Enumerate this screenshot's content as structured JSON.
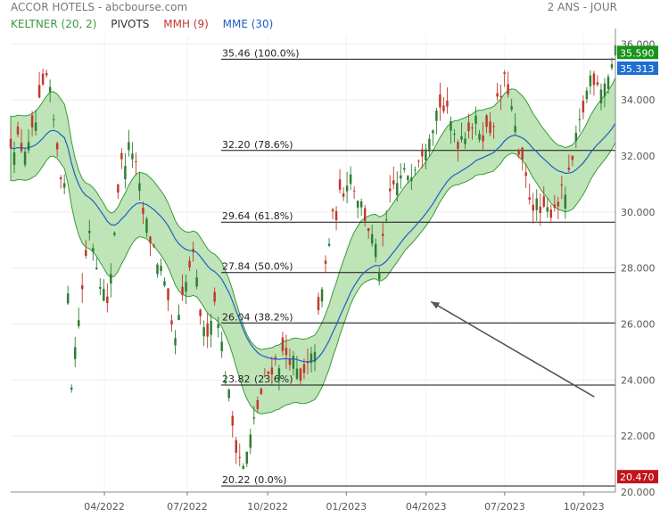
{
  "header": {
    "title": "ACCOR HOTELS - abcbourse.com",
    "period": "2 ANS - JOUR"
  },
  "legend": {
    "keltner": "KELTNER (20, 2)",
    "pivots": "PIVOTS",
    "mmh": "MMH (9)",
    "mme": "MME (30)"
  },
  "colors": {
    "keltner_band": "#a8dba0",
    "keltner_line": "#3a9a3a",
    "candle_down": "#c0392b",
    "candle_up": "#2e7d32",
    "mme": "#1f5fbf",
    "mmh": "#c0392b",
    "current_price_badge": "#169416",
    "mme_badge": "#1f6fd0",
    "low_badge": "#c0141c"
  },
  "chart_data": {
    "type": "candlestick",
    "title": "ACCOR HOTELS - abcbourse.com",
    "period": "2 ANS - JOUR",
    "y_ticks": [
      "36.000",
      "34.000",
      "32.000",
      "30.000",
      "28.000",
      "26.000",
      "24.000",
      "22.000",
      "20.000"
    ],
    "x_ticks": [
      "04/2022",
      "07/2022",
      "10/2022",
      "01/2023",
      "04/2023",
      "07/2023",
      "10/2023"
    ],
    "ylim": [
      20,
      36.3
    ],
    "price_path": [
      [
        0,
        32.6
      ],
      [
        0.03,
        32.2
      ],
      [
        0.06,
        34.8
      ],
      [
        0.09,
        30.5
      ],
      [
        0.1,
        23.9
      ],
      [
        0.13,
        29.5
      ],
      [
        0.16,
        26.5
      ],
      [
        0.18,
        31.5
      ],
      [
        0.2,
        32.4
      ],
      [
        0.22,
        29.8
      ],
      [
        0.25,
        27.8
      ],
      [
        0.27,
        25.2
      ],
      [
        0.3,
        28.5
      ],
      [
        0.32,
        25.5
      ],
      [
        0.34,
        27.0
      ],
      [
        0.35,
        25.0
      ],
      [
        0.37,
        22.0
      ],
      [
        0.385,
        20.8
      ],
      [
        0.41,
        23.2
      ],
      [
        0.43,
        24.5
      ],
      [
        0.46,
        25.0
      ],
      [
        0.48,
        23.8
      ],
      [
        0.5,
        24.8
      ],
      [
        0.53,
        29.5
      ],
      [
        0.56,
        31.5
      ],
      [
        0.59,
        29.6
      ],
      [
        0.61,
        28.0
      ],
      [
        0.63,
        30.8
      ],
      [
        0.66,
        31.5
      ],
      [
        0.68,
        32.3
      ],
      [
        0.71,
        33.9
      ],
      [
        0.74,
        32.6
      ],
      [
        0.76,
        33.2
      ],
      [
        0.79,
        32.8
      ],
      [
        0.82,
        34.8
      ],
      [
        0.84,
        32.0
      ],
      [
        0.86,
        30.5
      ],
      [
        0.88,
        29.8
      ],
      [
        0.9,
        30.3
      ],
      [
        0.92,
        30.8
      ],
      [
        0.94,
        33.0
      ],
      [
        0.96,
        35.0
      ],
      [
        0.98,
        34.5
      ],
      [
        1.0,
        35.59
      ]
    ],
    "fib_levels": [
      {
        "value": 35.46,
        "label": "35.46",
        "pct": "(100.0%)"
      },
      {
        "value": 32.2,
        "label": "32.20",
        "pct": "(78.6%)"
      },
      {
        "value": 29.64,
        "label": "29.64",
        "pct": "(61.8%)"
      },
      {
        "value": 27.84,
        "label": "27.84",
        "pct": "(50.0%)"
      },
      {
        "value": 26.04,
        "label": "26.04",
        "pct": "(38.2%)"
      },
      {
        "value": 23.82,
        "label": "23.82",
        "pct": "(23.6%)"
      },
      {
        "value": 20.22,
        "label": "20.22",
        "pct": "(0.0%)"
      }
    ],
    "current_price": "35.590",
    "current_price_value": 35.59,
    "mme_value": "35.313",
    "mme_value_num": 35.313,
    "low_value": "20.470",
    "low_value_num": 20.47,
    "arrow": {
      "from": [
        0.965,
        23.4
      ],
      "to": [
        0.695,
        26.8
      ]
    }
  }
}
